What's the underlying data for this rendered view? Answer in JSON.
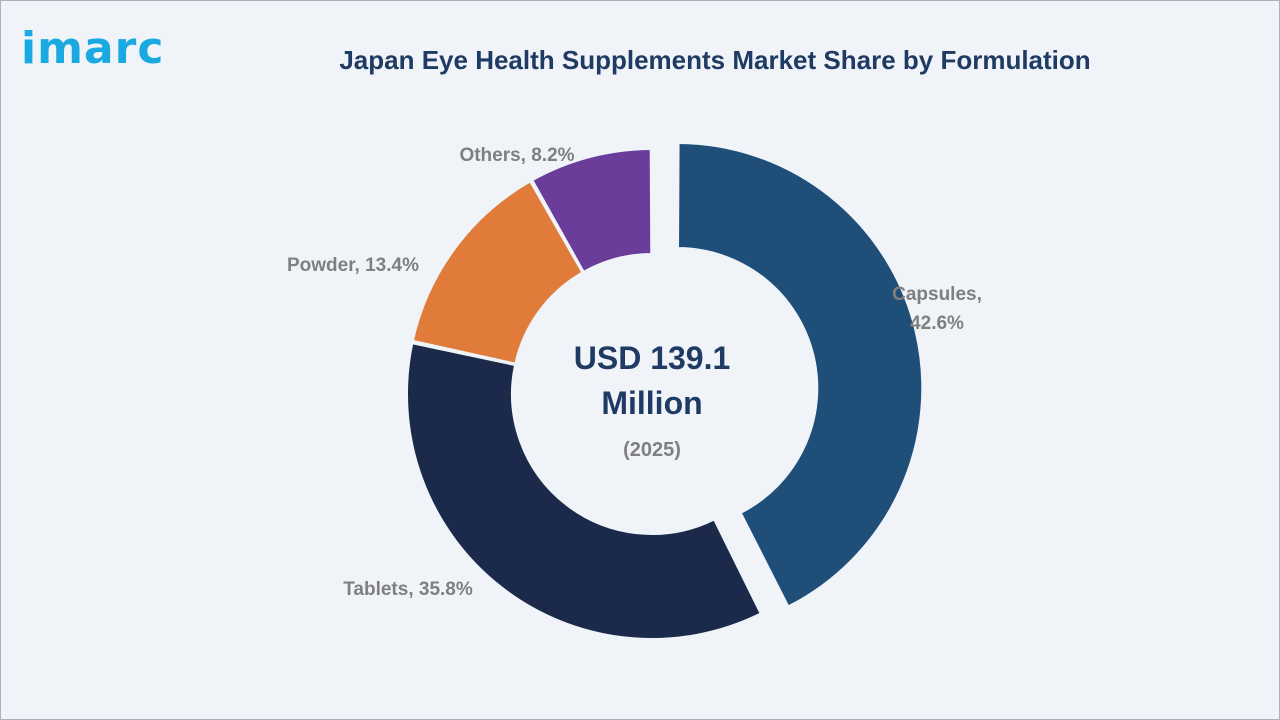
{
  "brand": {
    "logo_text": "imarc"
  },
  "header": {
    "title": "Japan Eye Health Supplements Market Share by Formulation"
  },
  "center": {
    "value_line1": "USD 139.1",
    "value_line2": "Million",
    "year": "(2025)"
  },
  "chart_data": {
    "type": "pie",
    "style": "donut",
    "title": "Japan Eye Health Supplements Market Share by Formulation",
    "unit": "%",
    "categories": [
      "Capsules",
      "Tablets",
      "Powder",
      "Others"
    ],
    "values": [
      42.6,
      35.8,
      13.4,
      8.2
    ],
    "labels": [
      "Capsules,",
      "42.6%",
      "Tablets, 35.8%",
      "Powder, 13.4%",
      "Others, 8.2%"
    ],
    "colors": [
      "#1f4e79",
      "#1b2a4a",
      "#e07b39",
      "#6a3d9a"
    ],
    "exploded": [
      "Capsules"
    ],
    "legend": "none"
  }
}
